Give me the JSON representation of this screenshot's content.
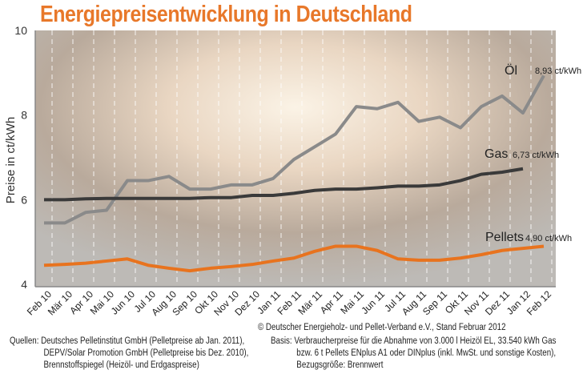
{
  "chart_data": {
    "type": "line",
    "title": "Energiepreisentwicklung in Deutschland",
    "ylabel": "Preise in ct/kWh",
    "xlabel": "",
    "ylim": [
      4,
      10
    ],
    "yticks": [
      4,
      6,
      8,
      10
    ],
    "grid": "vertical dashed",
    "categories": [
      "Feb 10",
      "Mär 10",
      "Apr 10",
      "Mai 10",
      "Jun 10",
      "Jul 10",
      "Aug 10",
      "Sep 10",
      "Okt 10",
      "Nov 10",
      "Dez 10",
      "Jan 11",
      "Feb 11",
      "Mär 11",
      "Apr 11",
      "Mai 11",
      "Jun 11",
      "Jul 11",
      "Aug 11",
      "Sep 11",
      "Okt 11",
      "Nov 11",
      "Dez 11",
      "Jan 12",
      "Feb 12"
    ],
    "series": [
      {
        "name": "Öl",
        "end_label": "8,93 ct/kWh",
        "color": "#8a8a8a",
        "values": [
          5.45,
          5.45,
          5.7,
          5.75,
          6.45,
          6.45,
          6.55,
          6.25,
          6.25,
          6.35,
          6.35,
          6.5,
          6.95,
          7.25,
          7.55,
          8.2,
          8.15,
          8.3,
          7.85,
          7.95,
          7.7,
          8.2,
          8.45,
          8.05,
          8.93
        ]
      },
      {
        "name": "Gas",
        "end_label": "6,73 ct/kWh",
        "color": "#3a3a3a",
        "values": [
          6.0,
          6.0,
          6.02,
          6.03,
          6.03,
          6.03,
          6.03,
          6.03,
          6.05,
          6.05,
          6.1,
          6.1,
          6.15,
          6.22,
          6.25,
          6.25,
          6.28,
          6.32,
          6.32,
          6.35,
          6.45,
          6.6,
          6.65,
          6.73,
          null
        ]
      },
      {
        "name": "Pellets",
        "end_label": "4,90 ct/kWh",
        "color": "#e8731e",
        "values": [
          4.45,
          4.47,
          4.5,
          4.55,
          4.6,
          4.45,
          4.38,
          4.32,
          4.38,
          4.42,
          4.47,
          4.55,
          4.62,
          4.78,
          4.9,
          4.9,
          4.8,
          4.6,
          4.57,
          4.57,
          4.62,
          4.7,
          4.8,
          4.85,
          4.9
        ]
      }
    ]
  },
  "footer": {
    "copyright": "© Deutscher Energieholz- und Pellet-Verband e.V., Stand Februar 2012",
    "sources": [
      "Quellen: Deutsches Pelletinstitut GmbH (Pelletpreise ab Jan. 2011),",
      "DEPV/Solar Promotion GmbH (Pelletpreise bis Dez. 2010),",
      "Brennstoffspiegel (Heizöl- und Erdgaspreise)"
    ],
    "basis": [
      "Basis: Verbraucherpreise für die Abnahme von 3.000 l Heizöl EL, 33.540 kWh Gas",
      "bzw. 6 t Pellets ENplus A1 oder DINplus (inkl. MwSt. und sonstige Kosten),",
      "Bezugsgröße: Brennwert"
    ]
  }
}
